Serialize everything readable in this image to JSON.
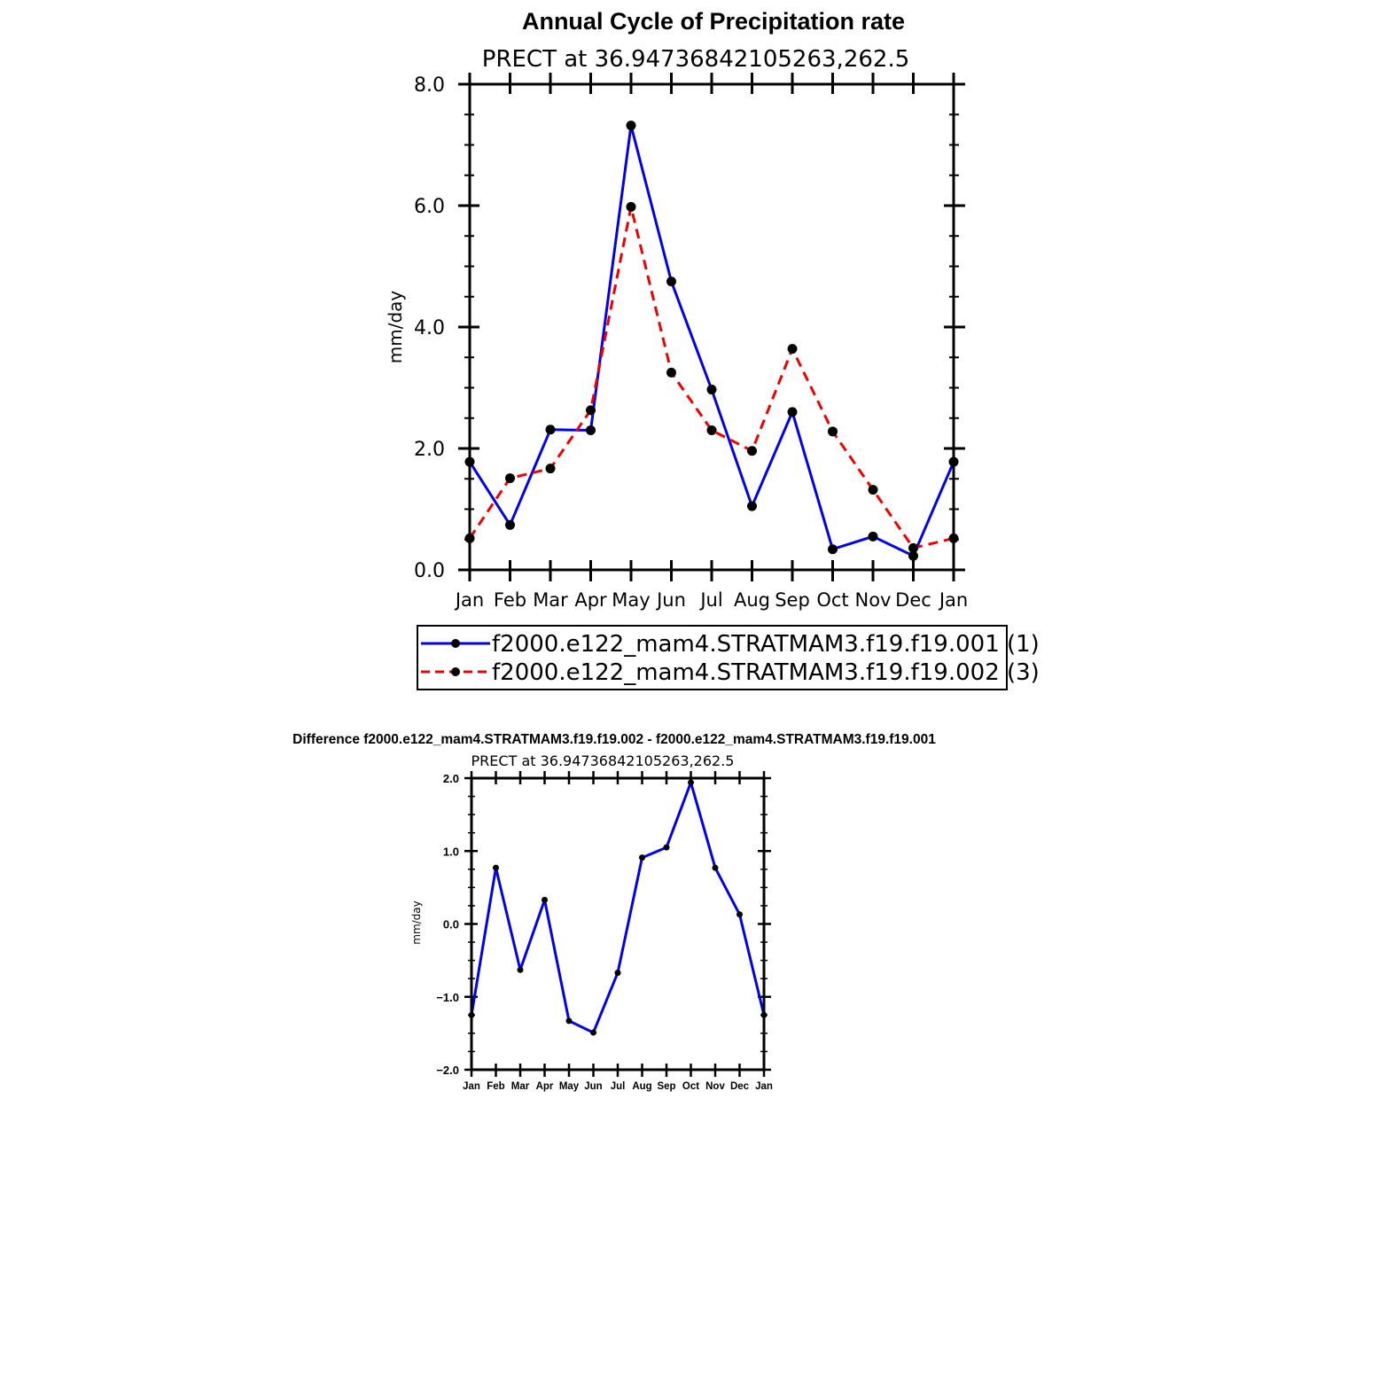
{
  "chart_data": [
    {
      "type": "line",
      "title": "Annual Cycle of Precipitation rate",
      "subtitle": "PRECT at 36.94736842105263,262.5",
      "xlabel": "",
      "ylabel": "mm/day",
      "categories": [
        "Jan",
        "Feb",
        "Mar",
        "Apr",
        "May",
        "Jun",
        "Jul",
        "Aug",
        "Sep",
        "Oct",
        "Nov",
        "Dec",
        "Jan"
      ],
      "ylim": [
        0,
        8
      ],
      "yticks": [
        "0.0",
        "2.0",
        "4.0",
        "6.0",
        "8.0"
      ],
      "grid": false,
      "legend_position": "bottom",
      "series": [
        {
          "name": "f2000.e122_mam4.STRATMAM3.f19.f19.001",
          "legend_label": "f2000.e122_mam4.STRATMAM3.f19.f19.001  (1)",
          "color": "#0000ee",
          "dash": "solid",
          "values": [
            1.78,
            0.74,
            2.31,
            2.3,
            7.32,
            4.75,
            2.97,
            1.05,
            2.6,
            0.34,
            0.55,
            0.23,
            1.78
          ]
        },
        {
          "name": "f2000.e122_mam4.STRATMAM3.f19.f19.002",
          "legend_label": "f2000.e122_mam4.STRATMAM3.f19.f19.002  (3)",
          "color": "#ee0000",
          "dash": "dashed",
          "values": [
            0.52,
            1.51,
            1.67,
            2.63,
            5.98,
            3.25,
            2.3,
            1.96,
            3.64,
            2.28,
            1.32,
            0.36,
            0.52
          ]
        }
      ]
    },
    {
      "type": "line",
      "title": "Difference f2000.e122_mam4.STRATMAM3.f19.f19.002 - f2000.e122_mam4.STRATMAM3.f19.f19.001",
      "subtitle": "PRECT at 36.94736842105263,262.5",
      "xlabel": "",
      "ylabel": "mm/day",
      "categories": [
        "Jan",
        "Feb",
        "Mar",
        "Apr",
        "May",
        "Jun",
        "Jul",
        "Aug",
        "Sep",
        "Oct",
        "Nov",
        "Dec",
        "Jan"
      ],
      "ylim": [
        -2,
        2
      ],
      "yticks": [
        "−2.0",
        "−1.0",
        "0.0",
        "1.0",
        "2.0"
      ],
      "grid": false,
      "series": [
        {
          "name": "difference",
          "color": "#0000ee",
          "dash": "solid",
          "values": [
            -1.25,
            0.77,
            -0.63,
            0.33,
            -1.33,
            -1.49,
            -0.67,
            0.91,
            1.05,
            1.94,
            0.77,
            0.13,
            -1.25
          ]
        }
      ]
    }
  ]
}
